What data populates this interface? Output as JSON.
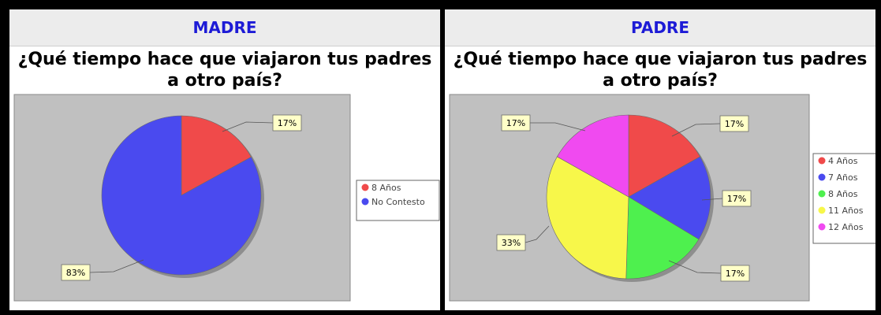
{
  "chart_data": [
    {
      "type": "pie",
      "header": "MADRE",
      "title_lines": [
        "¿Qué tiempo hace que viajaron tus padres",
        "a otro país?"
      ],
      "slices": [
        {
          "label": "8 Años",
          "value": 17,
          "display": "17%",
          "color": "#f04a4a"
        },
        {
          "label": "No Contesto",
          "value": 83,
          "display": "83%",
          "color": "#4a4aef"
        }
      ],
      "legend_placement": "right"
    },
    {
      "type": "pie",
      "header": "PADRE",
      "title_lines": [
        "¿Qué tiempo hace que viajaron tus padres",
        "a otro país?"
      ],
      "slices": [
        {
          "label": "4 Años",
          "value": 17,
          "display": "17%",
          "color": "#f04a4a"
        },
        {
          "label": "7 Años",
          "value": 17,
          "display": "17%",
          "color": "#4a4aef"
        },
        {
          "label": "8 Años",
          "value": 17,
          "display": "17%",
          "color": "#4ef04e"
        },
        {
          "label": "11 Años",
          "value": 33,
          "display": "33%",
          "color": "#f7f74a"
        },
        {
          "label": "12 Años",
          "value": 17,
          "display": "17%",
          "color": "#f04af0"
        }
      ],
      "legend_placement": "right"
    }
  ]
}
